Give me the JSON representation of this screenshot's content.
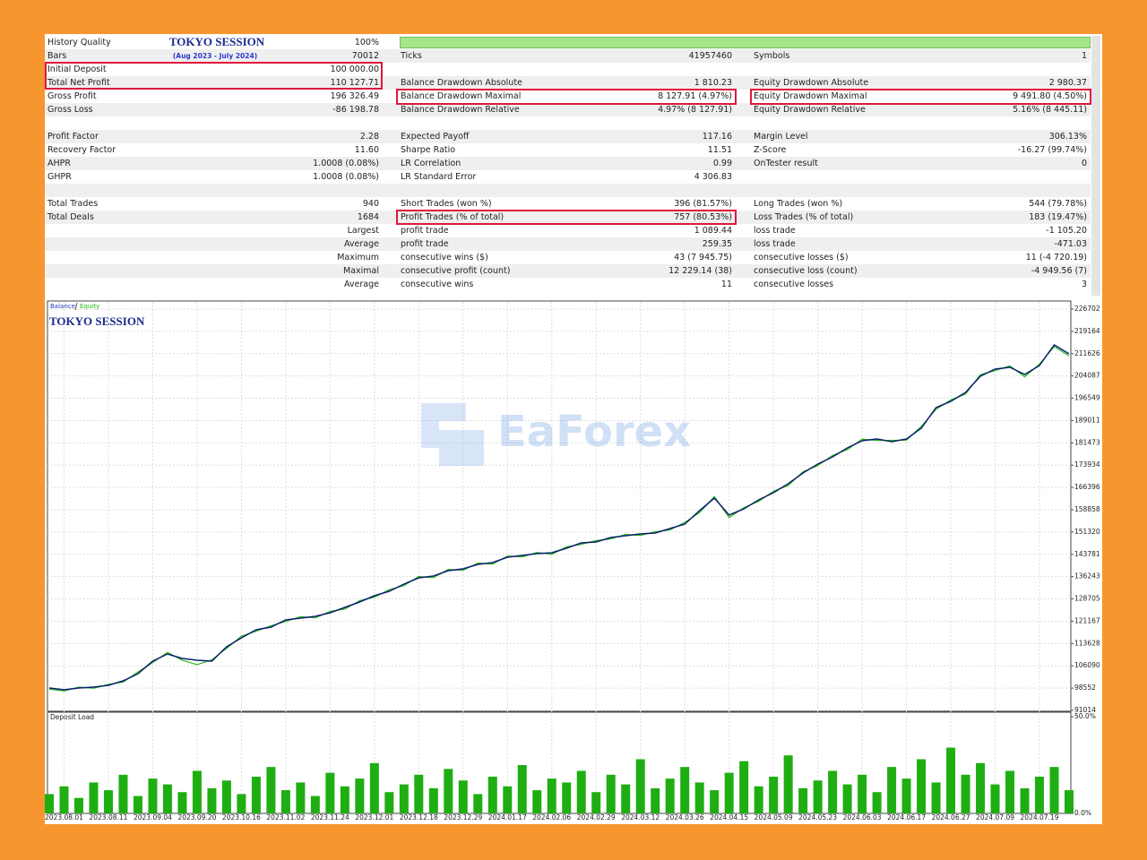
{
  "overlay": {
    "title": "TOKYO SESSION",
    "subtitle": "(Aug 2023 - July 2024)"
  },
  "watermark": "EaForex",
  "report": {
    "rows": [
      [
        {
          "label": "History Quality",
          "value": "100%"
        },
        null,
        null
      ],
      [
        {
          "label": "Bars",
          "value": "70012"
        },
        {
          "label": "Ticks",
          "value": "41957460"
        },
        {
          "label": "Symbols",
          "value": "1"
        }
      ],
      [
        {
          "label": "Initial Deposit",
          "value": "100 000.00"
        },
        null,
        null
      ],
      [
        {
          "label": "Total Net Profit",
          "value": "110 127.71"
        },
        {
          "label": "Balance Drawdown Absolute",
          "value": "1 810.23"
        },
        {
          "label": "Equity Drawdown Absolute",
          "value": "2 980.37"
        }
      ],
      [
        {
          "label": "Gross Profit",
          "value": "196 326.49"
        },
        {
          "label": "Balance Drawdown Maximal",
          "value": "8 127.91 (4.97%)"
        },
        {
          "label": "Equity Drawdown Maximal",
          "value": "9 491.80 (4.50%)"
        }
      ],
      [
        {
          "label": "Gross Loss",
          "value": "-86 198.78"
        },
        {
          "label": "Balance Drawdown Relative",
          "value": "4.97% (8 127.91)"
        },
        {
          "label": "Equity Drawdown Relative",
          "value": "5.16% (8 445.11)"
        }
      ],
      [
        null,
        null,
        null
      ],
      [
        {
          "label": "Profit Factor",
          "value": "2.28"
        },
        {
          "label": "Expected Payoff",
          "value": "117.16"
        },
        {
          "label": "Margin Level",
          "value": "306.13%"
        }
      ],
      [
        {
          "label": "Recovery Factor",
          "value": "11.60"
        },
        {
          "label": "Sharpe Ratio",
          "value": "11.51"
        },
        {
          "label": "Z-Score",
          "value": "-16.27 (99.74%)"
        }
      ],
      [
        {
          "label": "AHPR",
          "value": "1.0008 (0.08%)"
        },
        {
          "label": "LR Correlation",
          "value": "0.99"
        },
        {
          "label": "OnTester result",
          "value": "0"
        }
      ],
      [
        {
          "label": "GHPR",
          "value": "1.0008 (0.08%)"
        },
        {
          "label": "LR Standard Error",
          "value": "4 306.83"
        },
        null
      ],
      [
        null,
        null,
        null
      ],
      [
        {
          "label": "Total Trades",
          "value": "940"
        },
        {
          "label": "Short Trades (won %)",
          "value": "396 (81.57%)"
        },
        {
          "label": "Long Trades (won %)",
          "value": "544 (79.78%)"
        }
      ],
      [
        {
          "label": "Total Deals",
          "value": "1684"
        },
        {
          "label": "Profit Trades (% of total)",
          "value": "757 (80.53%)"
        },
        {
          "label": "Loss Trades (% of total)",
          "value": "183 (19.47%)"
        }
      ],
      [
        {
          "label": "Largest"
        },
        {
          "label": "profit trade",
          "value": "1 089.44"
        },
        {
          "label": "loss trade",
          "value": "-1 105.20"
        }
      ],
      [
        {
          "label": "Average"
        },
        {
          "label": "profit trade",
          "value": "259.35"
        },
        {
          "label": "loss trade",
          "value": "-471.03"
        }
      ],
      [
        {
          "label": "Maximum"
        },
        {
          "label": "consecutive wins ($)",
          "value": "43 (7 945.75)"
        },
        {
          "label": "consecutive losses ($)",
          "value": "11 (-4 720.19)"
        }
      ],
      [
        {
          "label": "Maximal"
        },
        {
          "label": "consecutive profit (count)",
          "value": "12 229.14 (38)"
        },
        {
          "label": "consecutive loss (count)",
          "value": "-4 949.56 (7)"
        }
      ],
      [
        {
          "label": "Average"
        },
        {
          "label": "consecutive wins",
          "value": "11"
        },
        {
          "label": "consecutive losses",
          "value": "3"
        }
      ]
    ]
  },
  "chart_data": [
    {
      "type": "line",
      "title": "TOKYO SESSION",
      "grid": true,
      "ylim": [
        91014,
        226702
      ],
      "yticks": [
        91014,
        98552,
        106090,
        113628,
        121167,
        128705,
        136243,
        143781,
        151320,
        158858,
        166396,
        173934,
        181473,
        189011,
        196549,
        204087,
        211626,
        219164,
        226702
      ],
      "series": [
        {
          "name": "Balance",
          "color": "#0b1f6e",
          "values": [
            98586,
            97980,
            98586,
            98890,
            99495,
            101010,
            103430,
            107674,
            110097,
            108583,
            107976,
            107674,
            112520,
            115550,
            118276,
            119185,
            121608,
            122214,
            122820,
            124030,
            125850,
            127665,
            129785,
            131300,
            133725,
            135845,
            136450,
            138265,
            138870,
            140390,
            140990,
            142810,
            143415,
            144020,
            144325,
            145840,
            147655,
            147960,
            149475,
            150080,
            150685,
            150990,
            152500,
            154020,
            158560,
            162800,
            157050,
            159170,
            162200,
            164620,
            167650,
            171280,
            174310,
            176735,
            179760,
            182190,
            182790,
            181880,
            182790,
            186420,
            193390,
            195515,
            198540,
            203995,
            206420,
            207025,
            204600,
            207630,
            214600,
            211570
          ]
        },
        {
          "name": "Equity",
          "color": "#22b814",
          "values": [
            98200,
            97600,
            98900,
            98500,
            99800,
            100600,
            104000,
            107200,
            110600,
            108000,
            106500,
            108100,
            112000,
            116100,
            117800,
            119600,
            121100,
            122700,
            122300,
            124500,
            125300,
            128100,
            129300,
            131800,
            133200,
            136300,
            135900,
            138700,
            138400,
            140800,
            140500,
            143200,
            142900,
            144400,
            143800,
            146300,
            147200,
            148400,
            149000,
            150500,
            150200,
            151400,
            152000,
            154600,
            157900,
            163300,
            156200,
            159600,
            161700,
            165100,
            167100,
            171700,
            173800,
            177200,
            179200,
            182700,
            182300,
            182300,
            182400,
            187000,
            192800,
            196000,
            198000,
            204500,
            205900,
            207500,
            203800,
            208100,
            214000,
            210900
          ]
        }
      ]
    },
    {
      "type": "bar",
      "title": "Deposit Load",
      "color": "#1fae12",
      "ylim": [
        0,
        50
      ],
      "yticks": [
        {
          "value": 50,
          "label": "50.0%"
        },
        {
          "value": 0,
          "label": "0.0%"
        }
      ],
      "categories": [
        null,
        "2023.08.01",
        null,
        null,
        "2023.08.11",
        null,
        null,
        "2023.09.04",
        null,
        null,
        "2023.09.20",
        null,
        null,
        "2023.10.16",
        null,
        null,
        "2023.11.02",
        null,
        null,
        "2023.11.24",
        null,
        null,
        "2023.12.01",
        null,
        null,
        "2023.12.18",
        null,
        null,
        "2023.12.29",
        null,
        null,
        "2024.01.17",
        null,
        null,
        "2024.02.06",
        null,
        null,
        "2024.02.29",
        null,
        null,
        "2024.03.12",
        null,
        null,
        "2024.03.26",
        null,
        null,
        "2024.04.15",
        null,
        null,
        "2024.05.09",
        null,
        null,
        "2024.05.23",
        null,
        null,
        "2024.06.03",
        null,
        null,
        "2024.06.17",
        null,
        null,
        "2024.06.27",
        null,
        null,
        "2024.07.09",
        null,
        null,
        "2024.07.19",
        null,
        null
      ],
      "values": [
        10,
        14,
        8,
        16,
        12,
        20,
        9,
        18,
        15,
        11,
        22,
        13,
        17,
        10,
        19,
        24,
        12,
        16,
        9,
        21,
        14,
        18,
        26,
        11,
        15,
        20,
        13,
        23,
        17,
        10,
        19,
        14,
        25,
        12,
        18,
        16,
        22,
        11,
        20,
        15,
        28,
        13,
        18,
        24,
        16,
        12,
        21,
        27,
        14,
        19,
        30,
        13,
        17,
        22,
        15,
        20,
        11,
        24,
        18,
        28,
        16,
        34,
        20,
        26,
        15,
        22,
        13,
        19,
        24,
        12
      ]
    }
  ]
}
